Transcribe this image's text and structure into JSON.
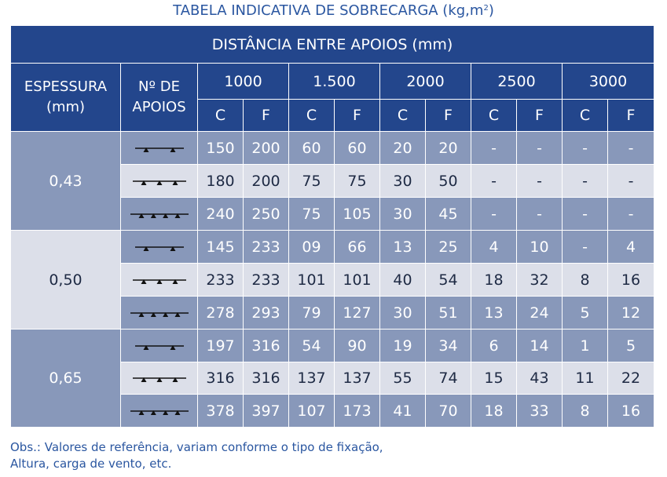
{
  "title": {
    "text": "TABELA INDICATIVA DE SOBRECARGA (kg,m",
    "sup": "2",
    "close": ")"
  },
  "header": {
    "span_title": "DISTÂNCIA ENTRE APOIOS (mm)",
    "thickness_label_line1": "ESPESSURA",
    "thickness_label_line2": "(mm)",
    "supports_label_line1": "Nº DE",
    "supports_label_line2": "APOIOS",
    "distances": [
      "1000",
      "1.500",
      "2000",
      "2500",
      "3000"
    ],
    "sub_c": "C",
    "sub_f": "F"
  },
  "groups": [
    {
      "thickness": "0,43",
      "rows": [
        {
          "supports": 2,
          "values": [
            "150",
            "200",
            "60",
            "60",
            "20",
            "20",
            "-",
            "-",
            "-",
            "-"
          ]
        },
        {
          "supports": 3,
          "values": [
            "180",
            "200",
            "75",
            "75",
            "30",
            "50",
            "-",
            "-",
            "-",
            "-"
          ]
        },
        {
          "supports": 4,
          "values": [
            "240",
            "250",
            "75",
            "105",
            "30",
            "45",
            "-",
            "-",
            "-",
            "-"
          ]
        }
      ]
    },
    {
      "thickness": "0,50",
      "rows": [
        {
          "supports": 2,
          "values": [
            "145",
            "233",
            "09",
            "66",
            "13",
            "25",
            "4",
            "10",
            "-",
            "4"
          ]
        },
        {
          "supports": 3,
          "values": [
            "233",
            "233",
            "101",
            "101",
            "40",
            "54",
            "18",
            "32",
            "8",
            "16"
          ]
        },
        {
          "supports": 4,
          "values": [
            "278",
            "293",
            "79",
            "127",
            "30",
            "51",
            "13",
            "24",
            "5",
            "12"
          ]
        }
      ]
    },
    {
      "thickness": "0,65",
      "rows": [
        {
          "supports": 2,
          "values": [
            "197",
            "316",
            "54",
            "90",
            "19",
            "34",
            "6",
            "14",
            "1",
            "5"
          ]
        },
        {
          "supports": 3,
          "values": [
            "316",
            "316",
            "137",
            "137",
            "55",
            "74",
            "15",
            "43",
            "11",
            "22"
          ]
        },
        {
          "supports": 4,
          "values": [
            "378",
            "397",
            "107",
            "173",
            "41",
            "70",
            "18",
            "33",
            "8",
            "16"
          ]
        }
      ]
    }
  ],
  "note": {
    "line1": "Obs.: Valores de referência, variam conforme o tipo de fixação,",
    "line2": "Altura, carga de vento, etc."
  },
  "colors": {
    "header": "#23468c",
    "row_dark": "#8898ba",
    "row_light": "#dcdfe9",
    "title_text": "#2a56a0"
  }
}
